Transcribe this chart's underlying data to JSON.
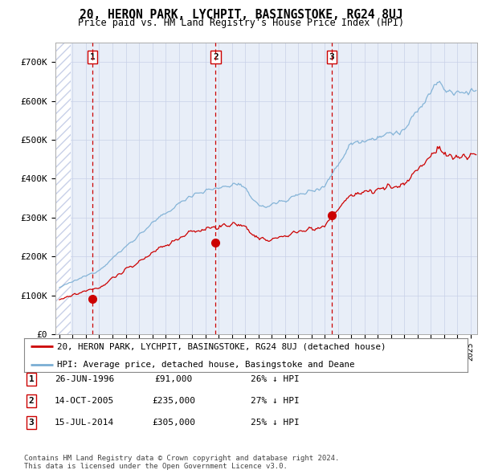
{
  "title": "20, HERON PARK, LYCHPIT, BASINGSTOKE, RG24 8UJ",
  "subtitle": "Price paid vs. HM Land Registry's House Price Index (HPI)",
  "ylim": [
    0,
    750000
  ],
  "yticks": [
    0,
    100000,
    200000,
    300000,
    400000,
    500000,
    600000,
    700000
  ],
  "ytick_labels": [
    "£0",
    "£100K",
    "£200K",
    "£300K",
    "£400K",
    "£500K",
    "£600K",
    "£700K"
  ],
  "xlim_start": 1993.7,
  "xlim_end": 2025.5,
  "background_color": "#e8eef8",
  "hatch_color": "#c8d0e8",
  "grid_color": "#c8d0e8",
  "red_line_color": "#cc0000",
  "blue_line_color": "#7aaed4",
  "sale_marker_color": "#cc0000",
  "dashed_line_color": "#cc0000",
  "transactions": [
    {
      "date_num": 1996.48,
      "price": 91000,
      "label": "1"
    },
    {
      "date_num": 2005.78,
      "price": 235000,
      "label": "2"
    },
    {
      "date_num": 2014.54,
      "price": 305000,
      "label": "3"
    }
  ],
  "legend_red_label": "20, HERON PARK, LYCHPIT, BASINGSTOKE, RG24 8UJ (detached house)",
  "legend_blue_label": "HPI: Average price, detached house, Basingstoke and Deane",
  "table_rows": [
    {
      "num": "1",
      "date": "26-JUN-1996",
      "price": "£91,000",
      "hpi": "26% ↓ HPI"
    },
    {
      "num": "2",
      "date": "14-OCT-2005",
      "price": "£235,000",
      "hpi": "27% ↓ HPI"
    },
    {
      "num": "3",
      "date": "15-JUL-2014",
      "price": "£305,000",
      "hpi": "25% ↓ HPI"
    }
  ],
  "footnote": "Contains HM Land Registry data © Crown copyright and database right 2024.\nThis data is licensed under the Open Government Licence v3.0.",
  "hatch_end": 1994.83
}
